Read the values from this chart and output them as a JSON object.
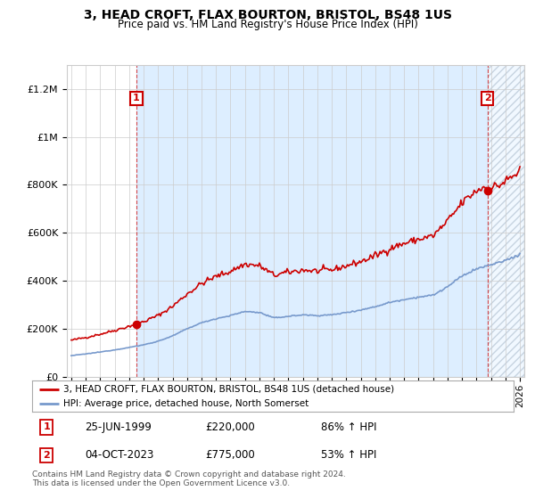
{
  "title": "3, HEAD CROFT, FLAX BOURTON, BRISTOL, BS48 1US",
  "subtitle": "Price paid vs. HM Land Registry's House Price Index (HPI)",
  "red_label": "3, HEAD CROFT, FLAX BOURTON, BRISTOL, BS48 1US (detached house)",
  "blue_label": "HPI: Average price, detached house, North Somerset",
  "sale1_date": "25-JUN-1999",
  "sale1_price": 220000,
  "sale1_hpi": "86% ↑ HPI",
  "sale2_date": "04-OCT-2023",
  "sale2_price": 775000,
  "sale2_hpi": "53% ↑ HPI",
  "footer": "Contains HM Land Registry data © Crown copyright and database right 2024.\nThis data is licensed under the Open Government Licence v3.0.",
  "red_color": "#cc0000",
  "blue_color": "#7799cc",
  "fill_color": "#ddeeff",
  "background": "#ffffff",
  "grid_color": "#cccccc",
  "ylim": [
    0,
    1300000
  ],
  "xlim_start": 1994.7,
  "xlim_end": 2026.3,
  "sale1_year": 1999.5,
  "sale2_year": 2023.75
}
